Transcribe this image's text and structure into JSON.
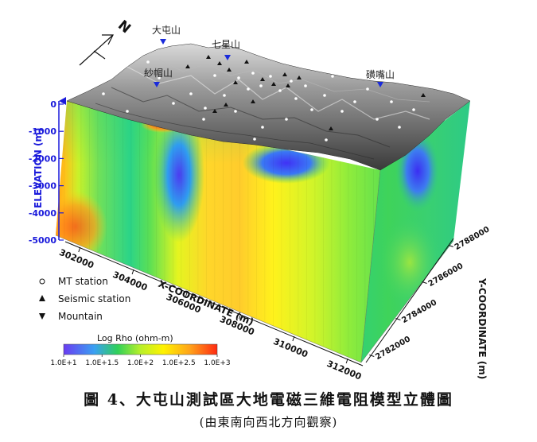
{
  "figure": {
    "caption": "圖 4、大屯山測試區大地電磁三維電阻模型立體圖",
    "subcaption": "(由東南向西北方向觀察)",
    "north_label": "N"
  },
  "chart_data": {
    "type": "heatmap",
    "title": "",
    "xlabel": "X-COORDINATE (m)",
    "ylabel": "Y-COORDINATE (m)",
    "zlabel": "ELEVATION (m)",
    "x_ticks": [
      "302000",
      "304000",
      "306000",
      "308000",
      "310000",
      "312000"
    ],
    "y_ticks": [
      "2782000",
      "2784000",
      "2786000",
      "2788000"
    ],
    "z_ticks": [
      "0",
      "-1000",
      "-2000",
      "-3000",
      "-4000",
      "-5000"
    ],
    "xlim": [
      301500,
      312500
    ],
    "ylim": [
      2781500,
      2788500
    ],
    "zlim": [
      -5000,
      0
    ],
    "colorbar": {
      "label": "Log Rho (ohm-m)",
      "ticks": [
        "1.0E+1",
        "1.0E+1.5",
        "1.0E+2",
        "1.0E+2.5",
        "1.0E+3"
      ],
      "range": [
        1.0,
        3.0
      ],
      "colors": [
        "#5a36f2",
        "#2f8cf5",
        "#2fd05a",
        "#c6f22a",
        "#fff200",
        "#ffa41a",
        "#ff2a12"
      ]
    },
    "legend": [
      {
        "label": "MT station",
        "marker": "open-circle"
      },
      {
        "label": "Seismic station",
        "marker": "up-triangle"
      },
      {
        "label": "Mountain",
        "marker": "down-triangle"
      }
    ],
    "mountains": [
      "大屯山",
      "七星山",
      "紗帽山",
      "磺嘴山"
    ],
    "surface": "shaded terrain (gray)"
  }
}
